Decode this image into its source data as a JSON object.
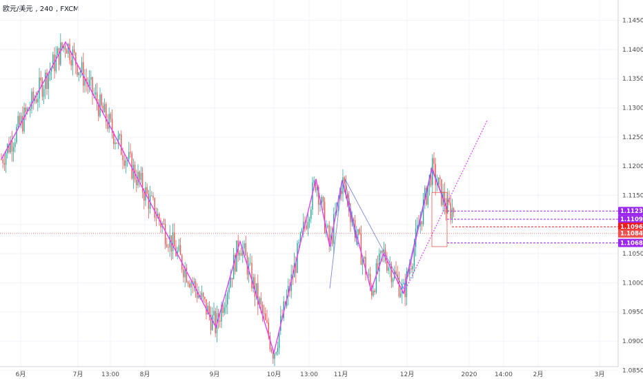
{
  "header": {
    "symbol": "欧元/美元",
    "interval": "240",
    "exchange": "FXCM"
  },
  "chart_data": {
    "type": "candlestick",
    "title": "",
    "y_axis": {
      "side": "right",
      "ylim": [
        1.0835,
        1.1485
      ],
      "tick_labels": [
        "1.14500",
        "1.14000",
        "1.13500",
        "1.13000",
        "1.12500",
        "1.12000",
        "1.11500",
        "1.11000",
        "1.10500",
        "1.10000",
        "1.09500",
        "1.09000",
        "1.08500"
      ],
      "ticks": [
        1.145,
        1.14,
        1.135,
        1.13,
        1.125,
        1.12,
        1.115,
        1.11,
        1.105,
        1.1,
        1.095,
        1.09,
        1.085
      ]
    },
    "x_axis": {
      "tick_labels": [
        "6月",
        "7月",
        "13:00",
        "8月",
        "9月",
        "10月",
        "13:00",
        "11月",
        "12月",
        "2020",
        "14:00",
        "2月",
        "3月"
      ]
    },
    "price_labels": [
      {
        "value": "1.11231",
        "color": "#9c27f0"
      },
      {
        "value": "1.11091",
        "color": "#9c27f0"
      },
      {
        "value": "1.10960",
        "color": "#f01c1c"
      },
      {
        "value": "1.10847",
        "color": "#ef5350"
      },
      {
        "value": "1.10684",
        "color": "#9c27f0"
      }
    ],
    "current_price": 1.10847,
    "zigzag_pattern": [
      1.1212,
      1.1413,
      1.0924,
      1.1071,
      1.088,
      1.1178,
      1.1062,
      1.1176,
      1.0987,
      1.105,
      1.0982,
      1.1195,
      1.1126
    ],
    "harmonic_pattern": [
      1.099,
      1.1176,
      1.1062,
      1.1178,
      1.099,
      1.1198,
      1.1128
    ],
    "projection_line": [
      1.0982,
      1.1278
    ],
    "grid": true,
    "legend": "none"
  }
}
